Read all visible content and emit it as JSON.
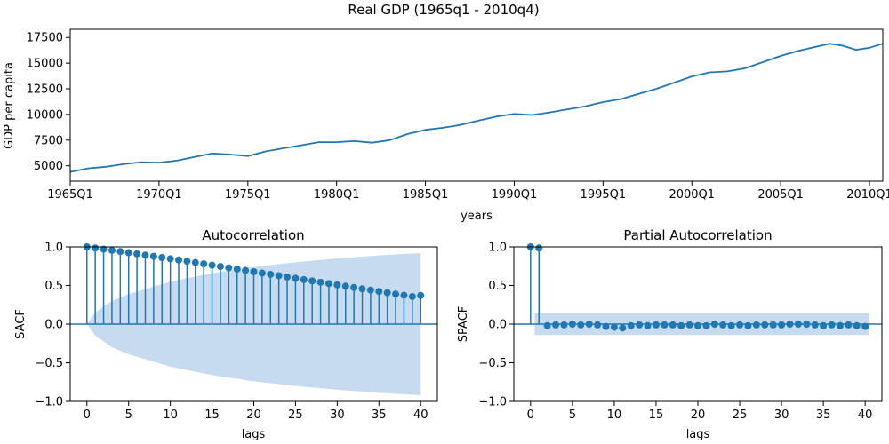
{
  "figure": {
    "title": "Real GDP (1965q1 - 2010q4)",
    "colors": {
      "line": "#1f77b4",
      "band": "#c6dbef"
    }
  },
  "chart_data": [
    {
      "type": "line",
      "title": "",
      "xlabel": "years",
      "ylabel": "GDP per capita",
      "ylim": [
        3500,
        18300
      ],
      "x_tick_labels": [
        "1965Q1",
        "1970Q1",
        "1975Q1",
        "1980Q1",
        "1985Q1",
        "1990Q1",
        "1995Q1",
        "2000Q1",
        "2005Q1",
        "2010Q1"
      ],
      "y_ticks": [
        5000,
        7500,
        10000,
        12500,
        15000,
        17500
      ],
      "y_tick_labels": [
        "5000",
        "7500",
        "10000",
        "12500",
        "15000",
        "17500"
      ],
      "grid": false,
      "series": [
        {
          "x": [
            "1965Q1",
            "1966Q1",
            "1967Q1",
            "1968Q1",
            "1969Q1",
            "1970Q1",
            "1971Q1",
            "1972Q1",
            "1973Q1",
            "1974Q1",
            "1975Q1",
            "1976Q1",
            "1977Q1",
            "1978Q1",
            "1979Q1",
            "1980Q1",
            "1981Q1",
            "1982Q1",
            "1983Q1",
            "1984Q1",
            "1985Q1",
            "1986Q1",
            "1987Q1",
            "1988Q1",
            "1989Q1",
            "1990Q1",
            "1991Q1",
            "1992Q1",
            "1993Q1",
            "1994Q1",
            "1995Q1",
            "1996Q1",
            "1997Q1",
            "1998Q1",
            "1999Q1",
            "2000Q1",
            "2001Q1",
            "2002Q1",
            "2003Q1",
            "2004Q1",
            "2005Q1",
            "2006Q1",
            "2007Q1",
            "2007Q4",
            "2008Q3",
            "2009Q2",
            "2010Q1",
            "2010Q4"
          ],
          "values": [
            4400,
            4750,
            4900,
            5150,
            5350,
            5300,
            5500,
            5850,
            6200,
            6100,
            5950,
            6400,
            6700,
            7000,
            7300,
            7300,
            7400,
            7250,
            7500,
            8100,
            8500,
            8700,
            9000,
            9400,
            9800,
            10050,
            9950,
            10200,
            10500,
            10800,
            11200,
            11500,
            12000,
            12500,
            13100,
            13700,
            14100,
            14200,
            14500,
            15100,
            15700,
            16200,
            16600,
            16900,
            16700,
            16300,
            16500,
            16900
          ]
        }
      ]
    },
    {
      "type": "stem",
      "title": "Autocorrelation",
      "xlabel": "lags",
      "ylabel": "SACF",
      "xlim": [
        -2,
        42
      ],
      "ylim": [
        -1.0,
        1.0
      ],
      "x_ticks": [
        0,
        5,
        10,
        15,
        20,
        25,
        30,
        35,
        40
      ],
      "x_tick_labels": [
        "0",
        "5",
        "10",
        "15",
        "20",
        "25",
        "30",
        "35",
        "40"
      ],
      "y_ticks": [
        -1.0,
        -0.5,
        0.0,
        0.5,
        1.0
      ],
      "y_tick_labels": [
        "−1.0",
        "−0.5",
        "0.0",
        "0.5",
        "1.0"
      ],
      "lags": [
        0,
        1,
        2,
        3,
        4,
        5,
        6,
        7,
        8,
        9,
        10,
        11,
        12,
        13,
        14,
        15,
        16,
        17,
        18,
        19,
        20,
        21,
        22,
        23,
        24,
        25,
        26,
        27,
        28,
        29,
        30,
        31,
        32,
        33,
        34,
        35,
        36,
        37,
        38,
        39,
        40
      ],
      "values": [
        1.0,
        0.985,
        0.97,
        0.955,
        0.94,
        0.925,
        0.91,
        0.894,
        0.878,
        0.862,
        0.846,
        0.83,
        0.814,
        0.797,
        0.78,
        0.763,
        0.746,
        0.729,
        0.712,
        0.695,
        0.678,
        0.661,
        0.644,
        0.627,
        0.61,
        0.593,
        0.576,
        0.559,
        0.542,
        0.525,
        0.508,
        0.491,
        0.474,
        0.457,
        0.44,
        0.423,
        0.406,
        0.389,
        0.373,
        0.357,
        0.37
      ],
      "confidence_band": {
        "lags": [
          0,
          1,
          3,
          5,
          10,
          15,
          20,
          25,
          30,
          35,
          40
        ],
        "upper": [
          0.0,
          0.15,
          0.3,
          0.39,
          0.55,
          0.66,
          0.74,
          0.8,
          0.85,
          0.89,
          0.92
        ],
        "lower": [
          0.0,
          -0.15,
          -0.3,
          -0.39,
          -0.55,
          -0.66,
          -0.74,
          -0.8,
          -0.85,
          -0.89,
          -0.92
        ]
      }
    },
    {
      "type": "stem",
      "title": "Partial Autocorrelation",
      "xlabel": "lags",
      "ylabel": "SPACF",
      "xlim": [
        -2,
        42
      ],
      "ylim": [
        -1.0,
        1.0
      ],
      "x_ticks": [
        0,
        5,
        10,
        15,
        20,
        25,
        30,
        35,
        40
      ],
      "x_tick_labels": [
        "0",
        "5",
        "10",
        "15",
        "20",
        "25",
        "30",
        "35",
        "40"
      ],
      "y_ticks": [
        -1.0,
        -0.5,
        0.0,
        0.5,
        1.0
      ],
      "y_tick_labels": [
        "−1.0",
        "−0.5",
        "0.0",
        "0.5",
        "1.0"
      ],
      "lags": [
        0,
        1,
        2,
        3,
        4,
        5,
        6,
        7,
        8,
        9,
        10,
        11,
        12,
        13,
        14,
        15,
        16,
        17,
        18,
        19,
        20,
        21,
        22,
        23,
        24,
        25,
        26,
        27,
        28,
        29,
        30,
        31,
        32,
        33,
        34,
        35,
        36,
        37,
        38,
        39,
        40
      ],
      "values": [
        1.0,
        0.985,
        -0.02,
        -0.01,
        -0.01,
        0.0,
        -0.01,
        0.0,
        -0.01,
        -0.03,
        -0.04,
        -0.05,
        -0.02,
        -0.01,
        -0.02,
        -0.01,
        -0.01,
        -0.01,
        -0.02,
        -0.01,
        -0.02,
        -0.02,
        0.0,
        -0.01,
        -0.02,
        -0.01,
        -0.02,
        -0.01,
        -0.01,
        -0.01,
        -0.01,
        0.0,
        0.0,
        0.0,
        -0.01,
        -0.02,
        -0.01,
        -0.02,
        -0.01,
        -0.02,
        -0.03
      ],
      "confidence_band": {
        "lags": [
          0.5,
          40.5
        ],
        "upper": [
          0.14,
          0.14
        ],
        "lower": [
          -0.14,
          -0.14
        ]
      }
    }
  ]
}
